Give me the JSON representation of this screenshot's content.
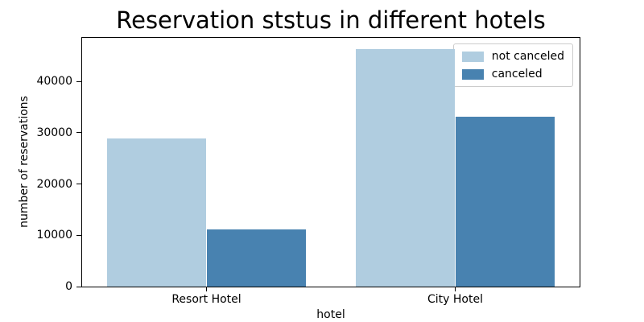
{
  "chart_data": {
    "type": "bar",
    "title": "Reservation ststus in different hotels",
    "xlabel": "hotel",
    "ylabel": "number of reservations",
    "categories": [
      "Resort Hotel",
      "City Hotel"
    ],
    "series": [
      {
        "name": "not canceled",
        "color": "#b0cde0",
        "values": [
          28938,
          46228
        ]
      },
      {
        "name": "canceled",
        "color": "#4882b0",
        "values": [
          11122,
          33102
        ]
      }
    ],
    "yticks": [
      0,
      10000,
      20000,
      30000,
      40000
    ],
    "ylim": [
      0,
      48500
    ],
    "grid": false,
    "legend": {
      "position": "upper right",
      "labels": [
        "not canceled",
        "canceled"
      ]
    },
    "colors": {
      "not_canceled": "#b0cde0",
      "canceled": "#4882b0",
      "spine": "#000000",
      "background": "#ffffff"
    }
  }
}
